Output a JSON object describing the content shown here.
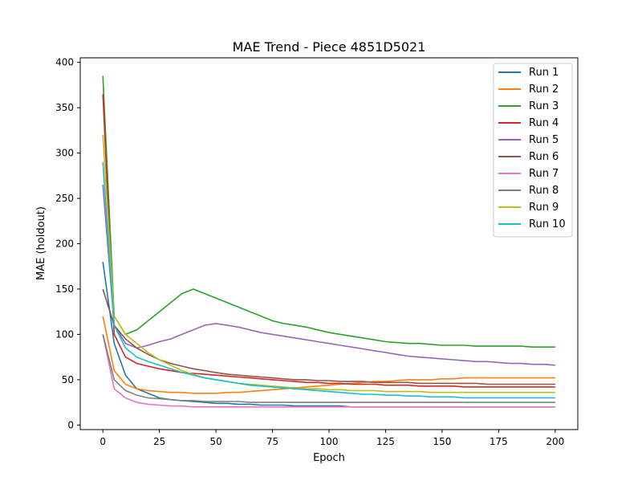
{
  "chart_data": {
    "type": "line",
    "title": "MAE Trend - Piece 4851D5021",
    "xlabel": "Epoch",
    "ylabel": "MAE (holdout)",
    "xlim": [
      -10,
      210
    ],
    "ylim": [
      -5,
      405
    ],
    "xticks": [
      0,
      25,
      50,
      75,
      100,
      125,
      150,
      175,
      200
    ],
    "yticks": [
      0,
      50,
      100,
      150,
      200,
      250,
      300,
      350,
      400
    ],
    "grid": false,
    "legend_position": "top-right",
    "series": [
      {
        "name": "Run 1",
        "color": "#1f77b4",
        "values": [
          180,
          90,
          55,
          40,
          35,
          30,
          28,
          27,
          26,
          25,
          24,
          24,
          23,
          23,
          22,
          22,
          22,
          21,
          21,
          21,
          21,
          21,
          20,
          20,
          20,
          20,
          20,
          20,
          20,
          20,
          20,
          20,
          20,
          20,
          20,
          20,
          20,
          20,
          20,
          20,
          20
        ]
      },
      {
        "name": "Run 2",
        "color": "#ff7f0e",
        "values": [
          120,
          60,
          45,
          40,
          38,
          37,
          36,
          36,
          35,
          35,
          35,
          36,
          36,
          37,
          38,
          39,
          40,
          41,
          42,
          43,
          44,
          45,
          46,
          47,
          48,
          48,
          49,
          50,
          50,
          50,
          51,
          51,
          52,
          52,
          52,
          52,
          52,
          52,
          52,
          52,
          52
        ]
      },
      {
        "name": "Run 3",
        "color": "#2ca02c",
        "values": [
          385,
          120,
          100,
          105,
          115,
          125,
          135,
          145,
          150,
          145,
          140,
          135,
          130,
          125,
          120,
          115,
          112,
          110,
          108,
          105,
          102,
          100,
          98,
          96,
          94,
          92,
          91,
          90,
          90,
          89,
          88,
          88,
          88,
          87,
          87,
          87,
          87,
          87,
          86,
          86,
          86
        ]
      },
      {
        "name": "Run 4",
        "color": "#d62728",
        "values": [
          365,
          100,
          75,
          68,
          65,
          62,
          60,
          58,
          57,
          56,
          55,
          54,
          53,
          52,
          51,
          50,
          49,
          48,
          47,
          47,
          46,
          46,
          45,
          45,
          45,
          44,
          44,
          44,
          43,
          43,
          43,
          43,
          42,
          42,
          42,
          42,
          42,
          42,
          42,
          42,
          42
        ]
      },
      {
        "name": "Run 5",
        "color": "#9467bd",
        "values": [
          265,
          110,
          90,
          85,
          88,
          92,
          95,
          100,
          105,
          110,
          112,
          110,
          108,
          105,
          102,
          100,
          98,
          96,
          94,
          92,
          90,
          88,
          86,
          84,
          82,
          80,
          78,
          76,
          75,
          74,
          73,
          72,
          71,
          70,
          70,
          69,
          68,
          68,
          67,
          67,
          66
        ]
      },
      {
        "name": "Run 6",
        "color": "#8c564b",
        "values": [
          150,
          110,
          95,
          85,
          78,
          72,
          68,
          65,
          62,
          60,
          58,
          56,
          55,
          54,
          53,
          52,
          51,
          50,
          50,
          49,
          49,
          48,
          48,
          48,
          47,
          47,
          47,
          47,
          46,
          46,
          46,
          46,
          46,
          46,
          45,
          45,
          45,
          45,
          45,
          45,
          45
        ]
      },
      {
        "name": "Run 7",
        "color": "#e377c2",
        "values": [
          100,
          40,
          30,
          25,
          23,
          22,
          21,
          21,
          20,
          20,
          20,
          20,
          20,
          20,
          20,
          20,
          20,
          20,
          20,
          20,
          20,
          20,
          20,
          20,
          20,
          20,
          20,
          20,
          20,
          20,
          20,
          20,
          20,
          20,
          20,
          20,
          20,
          20,
          20,
          20,
          20
        ]
      },
      {
        "name": "Run 8",
        "color": "#7f7f7f",
        "values": [
          100,
          50,
          38,
          33,
          30,
          29,
          28,
          27,
          27,
          26,
          26,
          26,
          26,
          25,
          25,
          25,
          25,
          25,
          25,
          25,
          25,
          25,
          25,
          25,
          25,
          25,
          25,
          25,
          25,
          25,
          25,
          25,
          25,
          25,
          25,
          25,
          25,
          25,
          25,
          25,
          25
        ]
      },
      {
        "name": "Run 9",
        "color": "#bcbd22",
        "values": [
          320,
          120,
          100,
          90,
          80,
          72,
          66,
          60,
          56,
          52,
          50,
          48,
          46,
          45,
          44,
          43,
          42,
          41,
          40,
          40,
          39,
          39,
          38,
          38,
          38,
          37,
          37,
          37,
          37,
          36,
          36,
          36,
          36,
          36,
          36,
          36,
          36,
          36,
          36,
          36,
          36
        ]
      },
      {
        "name": "Run 10",
        "color": "#17becf",
        "values": [
          290,
          110,
          85,
          75,
          70,
          66,
          62,
          58,
          55,
          52,
          50,
          48,
          46,
          44,
          43,
          42,
          41,
          40,
          39,
          38,
          37,
          36,
          35,
          34,
          34,
          33,
          33,
          32,
          32,
          31,
          31,
          31,
          30,
          30,
          30,
          30,
          30,
          30,
          30,
          30,
          30
        ]
      }
    ]
  }
}
